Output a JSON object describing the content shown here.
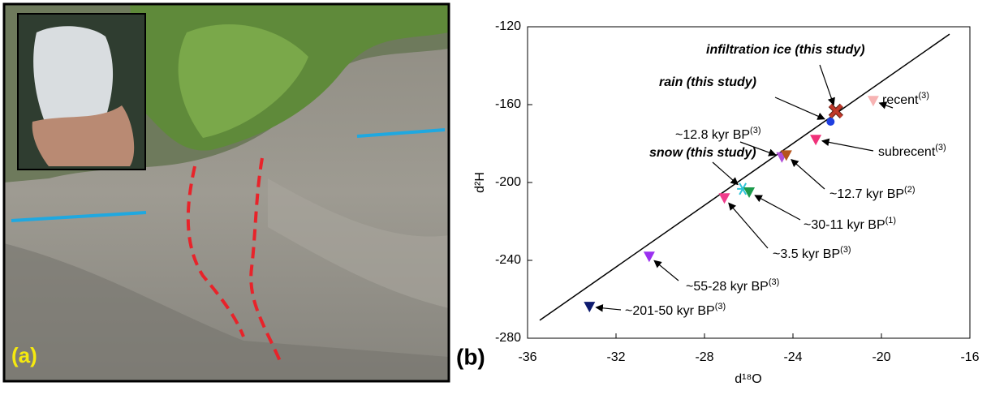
{
  "photo_panel": {
    "label": "(a)"
  },
  "chart_data": {
    "type": "scatter",
    "panel_label": "(b)",
    "x_label": "d¹⁸O",
    "y_label": "d²H",
    "xlim": [
      -36,
      -16
    ],
    "xticks": [
      -36,
      -32,
      -28,
      -24,
      -20,
      -16
    ],
    "ylim": [
      -280,
      -120
    ],
    "yticks": [
      -280,
      -240,
      -200,
      -160,
      -120
    ],
    "fit_line": {
      "x": [
        -35.45,
        -16.92
      ],
      "y": [
        -270.8,
        -123.8
      ],
      "color": "#000000"
    },
    "series": [
      {
        "name": "infiltration ice (this study)",
        "marker": "cross",
        "color": "#c0392b",
        "x": [
          -22.06
        ],
        "values": [
          -163.3
        ]
      },
      {
        "name": "rain (this study)",
        "marker": "circle",
        "color": "#1f3fe0",
        "x": [
          -22.3
        ],
        "values": [
          -168.75
        ]
      },
      {
        "name": "recent",
        "ref": "(3)",
        "marker": "triangle",
        "color": "#f7b3b3",
        "x": [
          -20.37
        ],
        "values": [
          -158
        ]
      },
      {
        "name": "subrecent",
        "ref": "(3)",
        "marker": "triangle",
        "color": "#f0327a",
        "x": [
          -22.97
        ],
        "values": [
          -178
        ]
      },
      {
        "name": "~12.8 kyr BP",
        "ref": "(3)",
        "marker": "triangle",
        "color": "#b04fd8",
        "x": [
          -24.5
        ],
        "values": [
          -187
        ]
      },
      {
        "name": "~12.7 kyr BP",
        "ref": "(2)",
        "marker": "triangle",
        "color": "#b5541c",
        "x": [
          -24.3
        ],
        "values": [
          -186
        ]
      },
      {
        "name": "snow (this study)",
        "marker": "asterisk",
        "color": "#2ec4d8",
        "x": [
          -26.27
        ],
        "values": [
          -203.3
        ]
      },
      {
        "name": "~30-11 kyr BP",
        "ref": "(1)",
        "marker": "triangle",
        "color": "#1a9a4a",
        "x": [
          -25.98
        ],
        "values": [
          -205
        ]
      },
      {
        "name": "~3.5 kyr BP",
        "ref": "(3)",
        "marker": "triangle",
        "color": "#f03c8c",
        "x": [
          -27.1
        ],
        "values": [
          -208
        ]
      },
      {
        "name": "~55-28 kyr BP",
        "ref": "(3)",
        "marker": "triangle",
        "color": "#9b30f0",
        "x": [
          -30.5
        ],
        "values": [
          -238
        ]
      },
      {
        "name": "~201-50 kyr BP",
        "ref": "(3)",
        "marker": "triangle",
        "color": "#0d1a6e",
        "x": [
          -33.2
        ],
        "values": [
          -263.8
        ]
      }
    ]
  }
}
